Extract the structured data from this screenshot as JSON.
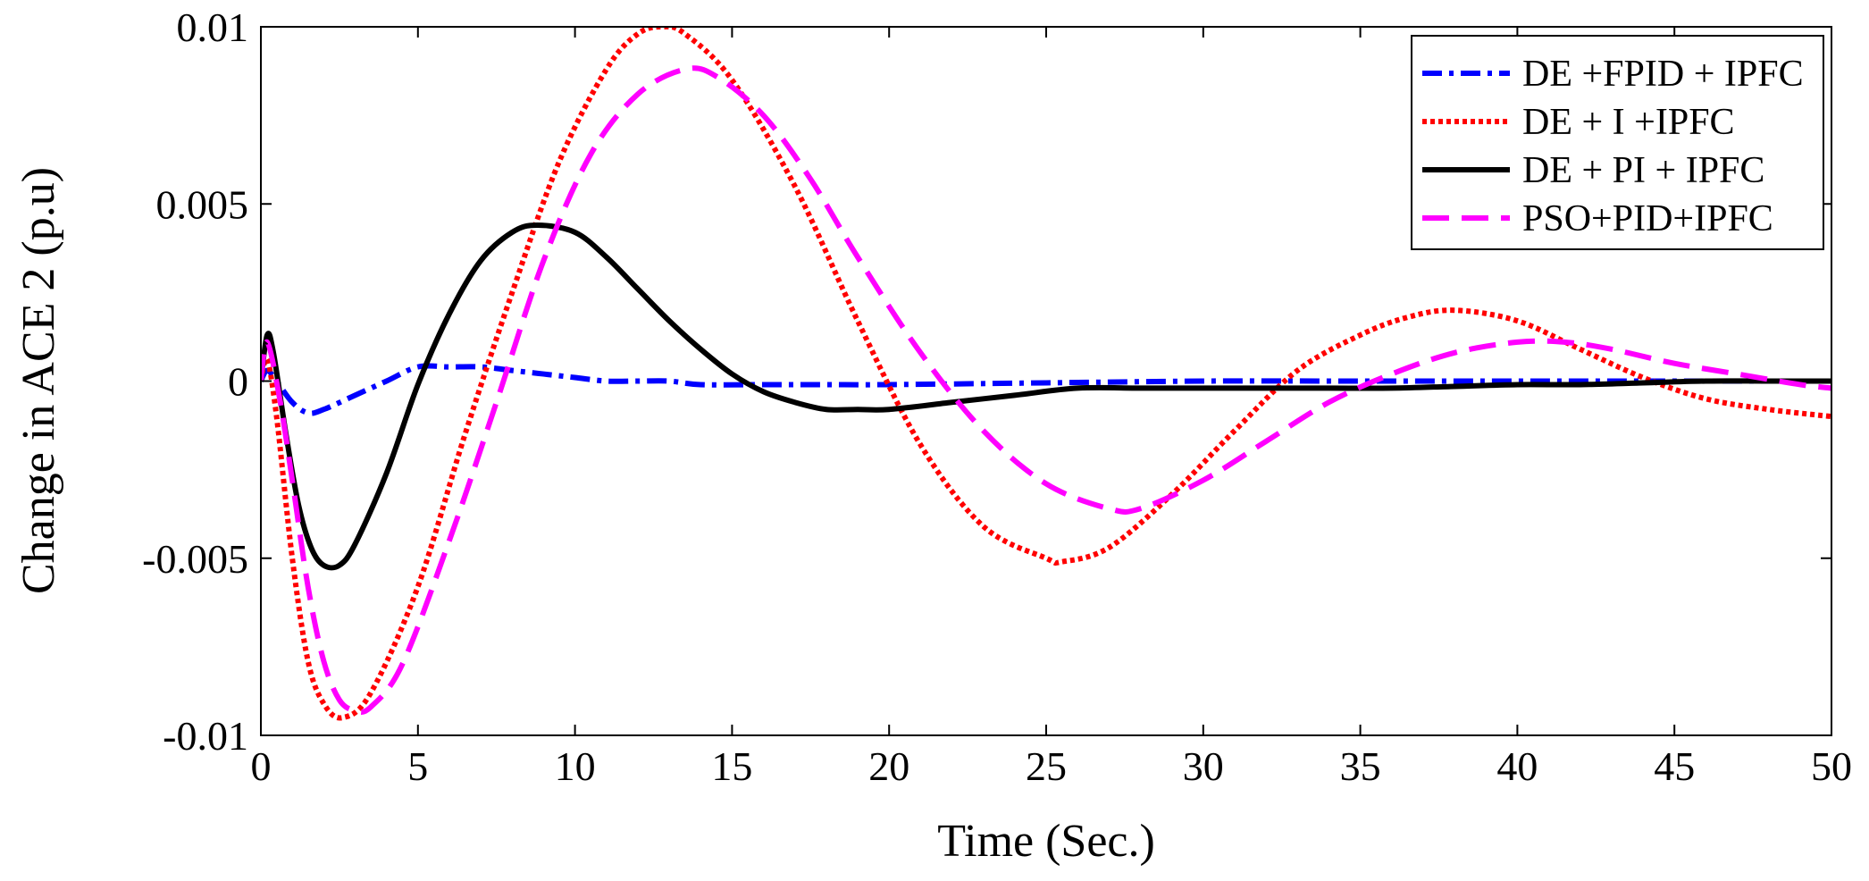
{
  "chart_data": {
    "type": "line",
    "title": "",
    "xlabel": "Time (Sec.)",
    "ylabel": "Change in ACE 2 (p.u)",
    "xlim": [
      0,
      50
    ],
    "ylim": [
      -0.01,
      0.01
    ],
    "xticks": [
      0,
      5,
      10,
      15,
      20,
      25,
      30,
      35,
      40,
      45,
      50
    ],
    "xtick_labels": [
      "0",
      "5",
      "10",
      "15",
      "20",
      "25",
      "30",
      "35",
      "40",
      "45",
      "50"
    ],
    "yticks": [
      -0.01,
      -0.005,
      0,
      0.005,
      0.01
    ],
    "ytick_labels": [
      "-0.01",
      "-0.005",
      "0",
      "0.005",
      "0.01"
    ],
    "grid": false,
    "legend_position": "top-right",
    "series": [
      {
        "name": "DE +FPID + IPFC",
        "color": "#0000ff",
        "style": "dashdot",
        "points": [
          [
            0,
            0
          ],
          [
            0.2,
            0.0003
          ],
          [
            0.5,
            0
          ],
          [
            1,
            -0.0006
          ],
          [
            1.5,
            -0.0009
          ],
          [
            2,
            -0.0008
          ],
          [
            3,
            -0.0004
          ],
          [
            4,
            0
          ],
          [
            5,
            0.0004
          ],
          [
            6,
            0.0004
          ],
          [
            7,
            0.0004
          ],
          [
            8,
            0.0003
          ],
          [
            9,
            0.0002
          ],
          [
            10,
            0.0001
          ],
          [
            11,
            0
          ],
          [
            12,
            0
          ],
          [
            13,
            0
          ],
          [
            14,
            -0.0001
          ],
          [
            16,
            -0.0001
          ],
          [
            18,
            -0.0001
          ],
          [
            20,
            -0.0001
          ],
          [
            25,
            -5e-05
          ],
          [
            30,
            0
          ],
          [
            35,
            0
          ],
          [
            40,
            0
          ],
          [
            45,
            0
          ],
          [
            50,
            0
          ]
        ]
      },
      {
        "name": "DE + I +IPFC",
        "color": "#ff0000",
        "style": "dotted",
        "points": [
          [
            0,
            0
          ],
          [
            0.2,
            0.0006
          ],
          [
            0.5,
            -0.001
          ],
          [
            1,
            -0.005
          ],
          [
            1.5,
            -0.0079
          ],
          [
            2,
            -0.0091
          ],
          [
            2.6,
            -0.0095
          ],
          [
            3.5,
            -0.0088
          ],
          [
            5,
            -0.0058
          ],
          [
            6.5,
            -0.0015
          ],
          [
            8,
            0.0025
          ],
          [
            9.5,
            0.0062
          ],
          [
            11,
            0.0088
          ],
          [
            12,
            0.0098
          ],
          [
            12.8,
            0.01
          ],
          [
            13.5,
            0.0098
          ],
          [
            15,
            0.0085
          ],
          [
            17,
            0.0055
          ],
          [
            19,
            0.0017
          ],
          [
            21,
            -0.0018
          ],
          [
            23,
            -0.0041
          ],
          [
            25,
            -0.005
          ],
          [
            25.5,
            -0.0051
          ],
          [
            27,
            -0.0047
          ],
          [
            29,
            -0.0032
          ],
          [
            31,
            -0.0014
          ],
          [
            33,
            0.0003
          ],
          [
            35,
            0.0013
          ],
          [
            36.5,
            0.0018
          ],
          [
            38,
            0.002
          ],
          [
            40,
            0.0017
          ],
          [
            42,
            0.0009
          ],
          [
            44,
            0.0001
          ],
          [
            46,
            -0.0005
          ],
          [
            48,
            -0.0008
          ],
          [
            50,
            -0.001
          ]
        ]
      },
      {
        "name": "DE + PI + IPFC",
        "color": "#000000",
        "style": "solid",
        "points": [
          [
            0,
            0
          ],
          [
            0.2,
            0.0013
          ],
          [
            0.4,
            0.0008
          ],
          [
            0.8,
            -0.0015
          ],
          [
            1.2,
            -0.0035
          ],
          [
            1.6,
            -0.0047
          ],
          [
            2,
            -0.0052
          ],
          [
            2.5,
            -0.0052
          ],
          [
            3,
            -0.0046
          ],
          [
            4,
            -0.0026
          ],
          [
            5,
            -0.0001
          ],
          [
            6,
            0.0019
          ],
          [
            7,
            0.0034
          ],
          [
            8,
            0.0042
          ],
          [
            8.8,
            0.0044
          ],
          [
            10,
            0.0042
          ],
          [
            11,
            0.0035
          ],
          [
            12,
            0.0026
          ],
          [
            13,
            0.0017
          ],
          [
            14,
            0.0009
          ],
          [
            15,
            0.0002
          ],
          [
            16,
            -0.0003
          ],
          [
            17,
            -0.0006
          ],
          [
            18,
            -0.0008
          ],
          [
            19,
            -0.0008
          ],
          [
            20,
            -0.0008
          ],
          [
            22,
            -0.0006
          ],
          [
            24,
            -0.0004
          ],
          [
            26,
            -0.0002
          ],
          [
            28,
            -0.0002
          ],
          [
            30,
            -0.0002
          ],
          [
            32,
            -0.0002
          ],
          [
            34,
            -0.0002
          ],
          [
            36,
            -0.0002
          ],
          [
            38,
            -0.00015
          ],
          [
            40,
            -0.0001
          ],
          [
            42,
            -0.0001
          ],
          [
            44,
            -5e-05
          ],
          [
            46,
            0
          ],
          [
            48,
            0
          ],
          [
            50,
            0
          ]
        ]
      },
      {
        "name": "PSO+PID+IPFC",
        "color": "#ff00ff",
        "style": "dashed",
        "points": [
          [
            0,
            0
          ],
          [
            0.2,
            0.0011
          ],
          [
            0.6,
            -0.0005
          ],
          [
            1,
            -0.0028
          ],
          [
            1.5,
            -0.0058
          ],
          [
            2,
            -0.0079
          ],
          [
            2.5,
            -0.009
          ],
          [
            3,
            -0.0093
          ],
          [
            3.5,
            -0.0092
          ],
          [
            4.5,
            -0.008
          ],
          [
            6,
            -0.0045
          ],
          [
            7.5,
            -0.0006
          ],
          [
            9,
            0.0034
          ],
          [
            10.5,
            0.0064
          ],
          [
            12,
            0.0081
          ],
          [
            13.5,
            0.0088
          ],
          [
            14.5,
            0.0086
          ],
          [
            16,
            0.0075
          ],
          [
            17.5,
            0.0057
          ],
          [
            19,
            0.0035
          ],
          [
            21,
            0.0008
          ],
          [
            23,
            -0.0014
          ],
          [
            25,
            -0.0029
          ],
          [
            27,
            -0.0036
          ],
          [
            28,
            -0.0036
          ],
          [
            30,
            -0.0028
          ],
          [
            32,
            -0.0017
          ],
          [
            34,
            -0.0006
          ],
          [
            36,
            0.0002
          ],
          [
            38,
            0.0008
          ],
          [
            40,
            0.0011
          ],
          [
            41.5,
            0.0011
          ],
          [
            43,
            0.0009
          ],
          [
            45,
            0.0005
          ],
          [
            47,
            0.0002
          ],
          [
            49,
            -0.0001
          ],
          [
            50,
            -0.0002
          ]
        ]
      }
    ]
  }
}
